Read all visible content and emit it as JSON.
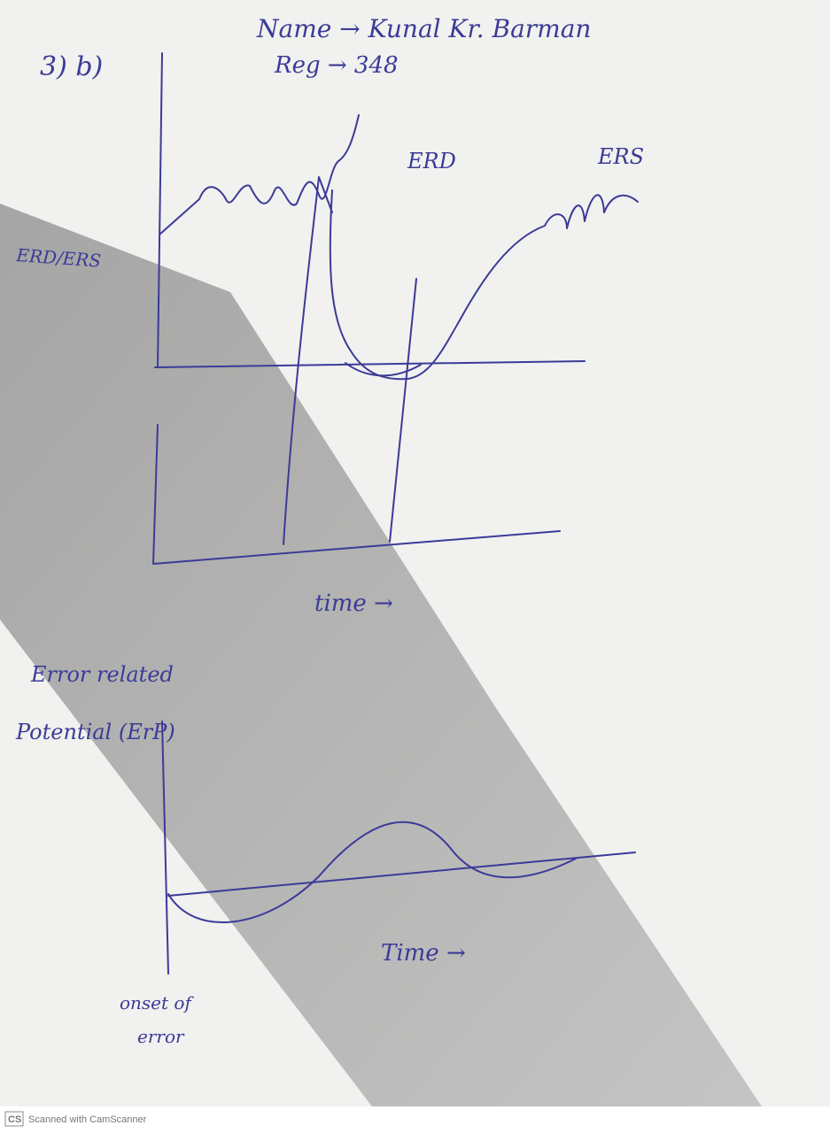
{
  "header": {
    "question": "3) b)",
    "name": "Name → Kunal Kr. Barman",
    "reg": "Reg → 348"
  },
  "figure1": {
    "y_label": "ERD/ERS",
    "labels": [
      "ERD",
      "ERS"
    ],
    "x_label": "time →"
  },
  "figure2": {
    "y_label_line1": "Error related",
    "y_label_line2": "Potential (ErP)",
    "x_label": "Time →",
    "annotation": [
      "onset of",
      "error"
    ]
  },
  "footer": "Scanned with CamScanner"
}
